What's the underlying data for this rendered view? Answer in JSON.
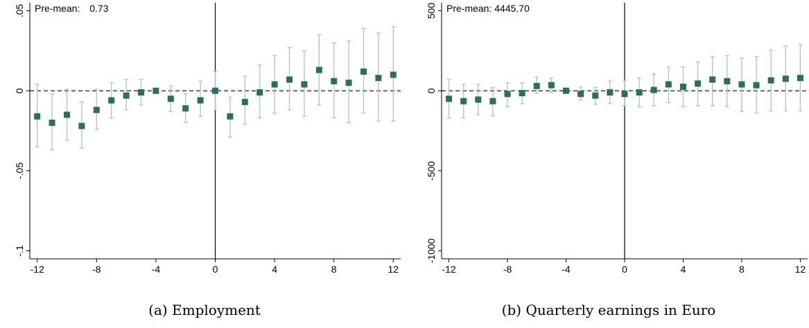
{
  "colors": {
    "point": "#2f6b5e",
    "ci": "#a9c7bf",
    "axis": "#000000",
    "grid_bg": "#ffffff"
  },
  "captions": [
    "(a) Employment",
    "(b) Quarterly earnings in Euro"
  ],
  "chart_data": [
    {
      "type": "scatter",
      "premean_label": "Pre-mean:",
      "premean_value": "0.73",
      "x": [
        -12,
        -11,
        -10,
        -9,
        -8,
        -7,
        -6,
        -5,
        -4,
        -3,
        -2,
        -1,
        0,
        1,
        2,
        3,
        4,
        5,
        6,
        7,
        8,
        9,
        10,
        11,
        12
      ],
      "y": [
        -0.016,
        -0.02,
        -0.015,
        -0.022,
        -0.012,
        -0.006,
        -0.003,
        -0.001,
        0.0,
        -0.005,
        -0.011,
        -0.006,
        0.0,
        -0.016,
        -0.007,
        -0.001,
        0.004,
        0.007,
        0.004,
        0.013,
        0.006,
        0.005,
        0.012,
        0.008,
        0.01
      ],
      "ci_low": [
        -0.035,
        -0.037,
        -0.031,
        -0.036,
        -0.024,
        -0.017,
        -0.012,
        -0.009,
        -0.001,
        -0.013,
        -0.02,
        -0.016,
        -0.012,
        -0.029,
        -0.021,
        -0.017,
        -0.014,
        -0.012,
        -0.016,
        -0.009,
        -0.017,
        -0.02,
        -0.014,
        -0.019,
        -0.019
      ],
      "ci_high": [
        0.004,
        -0.002,
        0.001,
        -0.007,
        0.001,
        0.005,
        0.007,
        0.007,
        0.001,
        0.003,
        -0.002,
        0.006,
        0.012,
        -0.004,
        0.009,
        0.016,
        0.022,
        0.027,
        0.025,
        0.035,
        0.03,
        0.031,
        0.039,
        0.036,
        0.04
      ],
      "xticks": [
        -12,
        -8,
        -4,
        0,
        4,
        8,
        12
      ],
      "xtick_labels": [
        "-12",
        "-8",
        "-4",
        "0",
        "4",
        "8",
        "12"
      ],
      "yticks": [
        0.05,
        0,
        -0.05,
        -0.1
      ],
      "ytick_labels": [
        ".05",
        "0",
        "-.05",
        "-.1"
      ],
      "xlim": [
        -12.5,
        12.5
      ],
      "ylim": [
        -0.105,
        0.055
      ],
      "reference_lines": {
        "horizontal_y": 0,
        "vertical_x": 0
      }
    },
    {
      "type": "scatter",
      "premean_label": "Pre-mean:",
      "premean_value": "4445.70",
      "x": [
        -12,
        -11,
        -10,
        -9,
        -8,
        -7,
        -6,
        -5,
        -4,
        -3,
        -2,
        -1,
        0,
        1,
        2,
        3,
        4,
        5,
        6,
        7,
        8,
        9,
        10,
        11,
        12
      ],
      "y": [
        -50,
        -65,
        -55,
        -65,
        -20,
        -15,
        30,
        35,
        0,
        -20,
        -30,
        -10,
        -20,
        -10,
        5,
        40,
        25,
        45,
        70,
        60,
        40,
        35,
        65,
        75,
        80
      ],
      "ci_low": [
        -170,
        -170,
        -150,
        -155,
        -100,
        -80,
        -15,
        -10,
        -10,
        -60,
        -85,
        -80,
        -95,
        -100,
        -95,
        -75,
        -100,
        -95,
        -95,
        -100,
        -130,
        -140,
        -125,
        -125,
        -125
      ],
      "ci_high": [
        70,
        40,
        40,
        20,
        50,
        50,
        85,
        80,
        10,
        25,
        20,
        60,
        65,
        80,
        105,
        150,
        150,
        180,
        215,
        220,
        205,
        215,
        255,
        280,
        290
      ],
      "xticks": [
        -12,
        -8,
        -4,
        0,
        4,
        8,
        12
      ],
      "xtick_labels": [
        "-12",
        "-8",
        "-4",
        "0",
        "4",
        "8",
        "12"
      ],
      "yticks": [
        500,
        0,
        -500,
        -1000
      ],
      "ytick_labels": [
        "500",
        "0",
        "-500",
        "-1000"
      ],
      "xlim": [
        -12.5,
        12.5
      ],
      "ylim": [
        -1050,
        550
      ],
      "reference_lines": {
        "horizontal_y": 0,
        "vertical_x": 0
      }
    }
  ]
}
